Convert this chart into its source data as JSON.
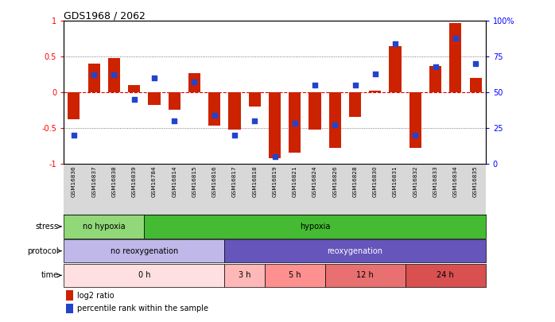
{
  "title": "GDS1968 / 2062",
  "samples": [
    "GSM16836",
    "GSM16837",
    "GSM16838",
    "GSM16839",
    "GSM16784",
    "GSM16814",
    "GSM16815",
    "GSM16816",
    "GSM16817",
    "GSM16818",
    "GSM16819",
    "GSM16821",
    "GSM16824",
    "GSM16826",
    "GSM16828",
    "GSM16830",
    "GSM16831",
    "GSM16832",
    "GSM16833",
    "GSM16834",
    "GSM16835"
  ],
  "log2_ratio": [
    -0.38,
    0.4,
    0.48,
    0.1,
    -0.18,
    -0.25,
    0.27,
    -0.47,
    -0.52,
    -0.2,
    -0.93,
    -0.85,
    -0.53,
    -0.78,
    -0.35,
    0.02,
    0.65,
    -0.78,
    0.37,
    0.97,
    0.2
  ],
  "percentile": [
    0.2,
    0.62,
    0.62,
    0.45,
    0.6,
    0.3,
    0.57,
    0.34,
    0.2,
    0.3,
    0.05,
    0.28,
    0.55,
    0.27,
    0.55,
    0.63,
    0.84,
    0.2,
    0.68,
    0.88,
    0.7
  ],
  "stress_groups": [
    {
      "label": "no hypoxia",
      "start": 0,
      "end": 4,
      "color": "#90d878"
    },
    {
      "label": "hypoxia",
      "start": 4,
      "end": 21,
      "color": "#44bb33"
    }
  ],
  "protocol_groups": [
    {
      "label": "no reoxygenation",
      "start": 0,
      "end": 8,
      "color": "#c0b8e8"
    },
    {
      "label": "reoxygenation",
      "start": 8,
      "end": 21,
      "color": "#6655bb"
    }
  ],
  "time_groups": [
    {
      "label": "0 h",
      "start": 0,
      "end": 8,
      "color": "#ffe0e0"
    },
    {
      "label": "3 h",
      "start": 8,
      "end": 10,
      "color": "#ffb8b8"
    },
    {
      "label": "5 h",
      "start": 10,
      "end": 13,
      "color": "#ff9090"
    },
    {
      "label": "12 h",
      "start": 13,
      "end": 17,
      "color": "#e87070"
    },
    {
      "label": "24 h",
      "start": 17,
      "end": 21,
      "color": "#d85050"
    }
  ],
  "bar_color": "#cc2200",
  "dot_color": "#2244cc",
  "hline_zero_color": "#dd0000",
  "dotted_line_color": "#555555",
  "sample_bg": "#d8d8d8"
}
